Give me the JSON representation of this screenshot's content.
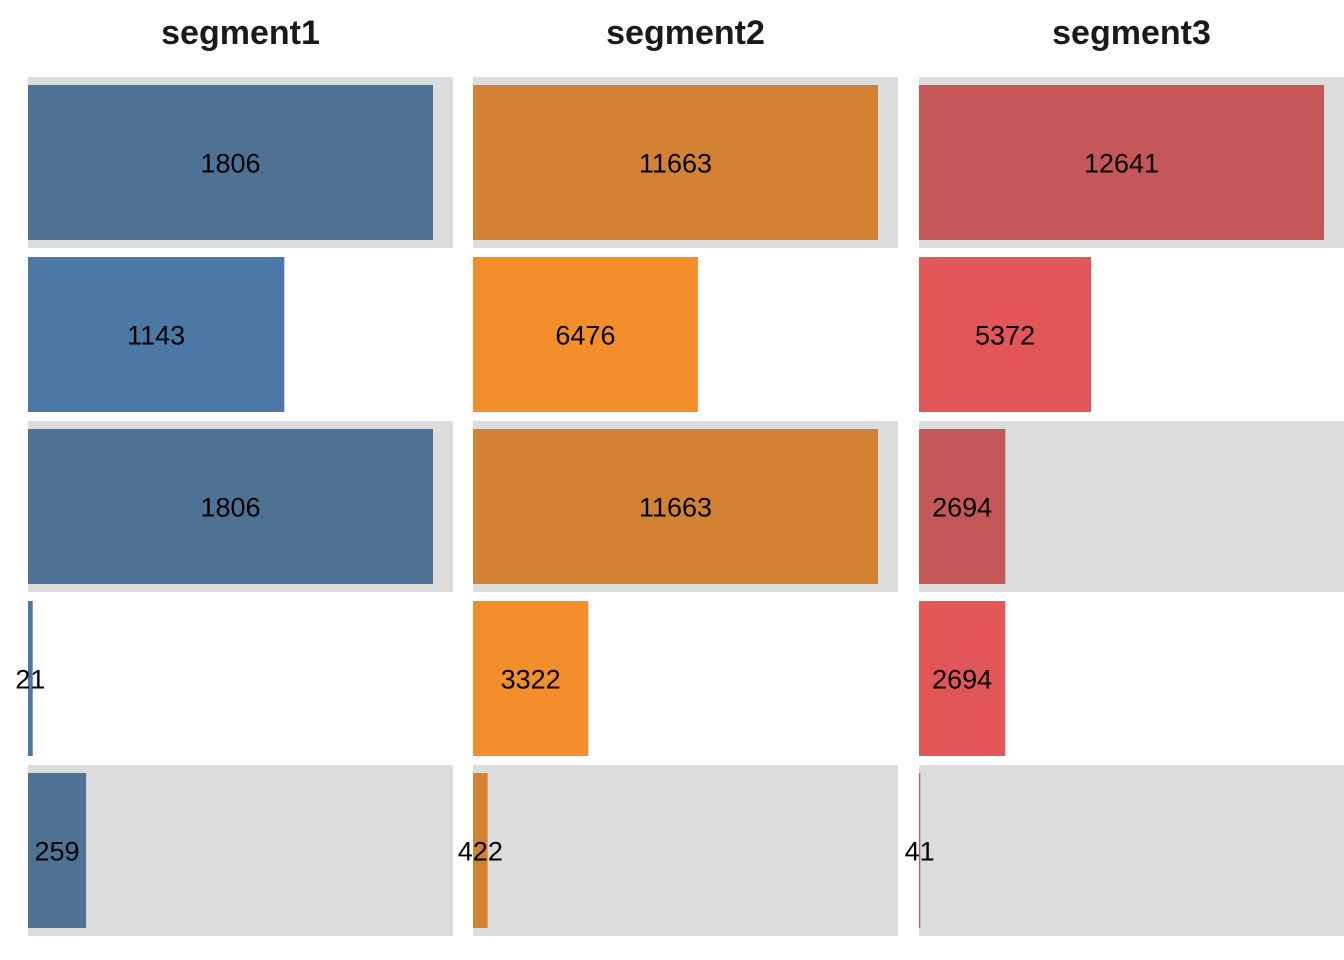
{
  "chart_data": {
    "type": "bar",
    "orientation": "horizontal",
    "layout": "small-multiples",
    "panels": [
      {
        "title": "segment1",
        "color_dark": "#4e7294",
        "color_light": "#4c78a5",
        "values": [
          1806,
          1143,
          1806,
          21,
          259
        ],
        "labels": [
          "1806",
          "1143",
          "1806",
          "21",
          "259"
        ]
      },
      {
        "title": "segment2",
        "color_dark": "#d38233",
        "color_light": "#f28e2b",
        "values": [
          11663,
          6476,
          11663,
          3322,
          422
        ],
        "labels": [
          "11663",
          "6476",
          "11663",
          "3322",
          "422"
        ]
      },
      {
        "title": "segment3",
        "color_dark": "#c55758",
        "color_light": "#e05659",
        "values": [
          12641,
          5372,
          2694,
          2694,
          41
        ],
        "labels": [
          "12641",
          "5372",
          "2694",
          "2694",
          "41"
        ]
      }
    ],
    "row_background": "#dcdcdc",
    "grid": false,
    "legend": "none"
  }
}
